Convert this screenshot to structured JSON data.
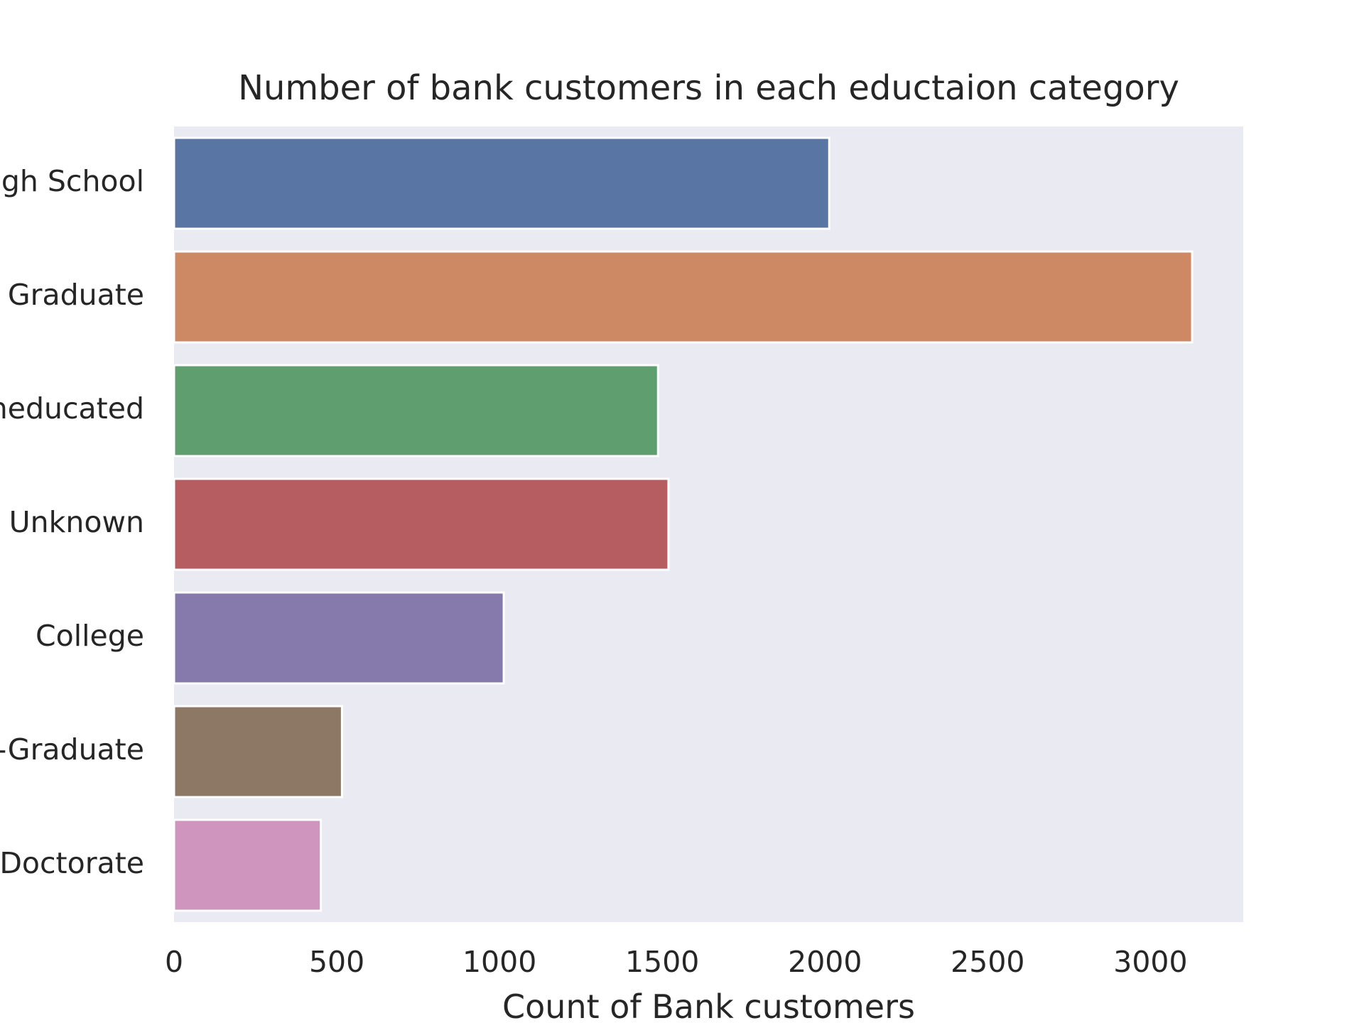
{
  "chart_data": {
    "type": "bar",
    "orientation": "horizontal",
    "title": "Number of bank customers in each eductaion category",
    "xlabel": "Count of Bank customers",
    "ylabel": "",
    "categories": [
      "High School",
      "Graduate",
      "Uneducated",
      "Unknown",
      "College",
      "Post-Graduate",
      "Doctorate"
    ],
    "values": [
      2013,
      3128,
      1487,
      1519,
      1013,
      516,
      451
    ],
    "colors": [
      "#5975a4",
      "#cc8963",
      "#5f9e6e",
      "#b55d60",
      "#857aab",
      "#8d7866",
      "#d095bf"
    ],
    "x_ticks": [
      {
        "value": 0,
        "label": "0"
      },
      {
        "value": 500,
        "label": "500"
      },
      {
        "value": 1000,
        "label": "1000"
      },
      {
        "value": 1500,
        "label": "1500"
      },
      {
        "value": 2000,
        "label": "2000"
      },
      {
        "value": 2500,
        "label": "2500"
      },
      {
        "value": 3000,
        "label": "3000"
      }
    ],
    "xlim": [
      0,
      3285
    ],
    "grid": false,
    "legend": "none",
    "background_color": "#eaeaf2",
    "bar_edge_color": "#ffffff"
  }
}
